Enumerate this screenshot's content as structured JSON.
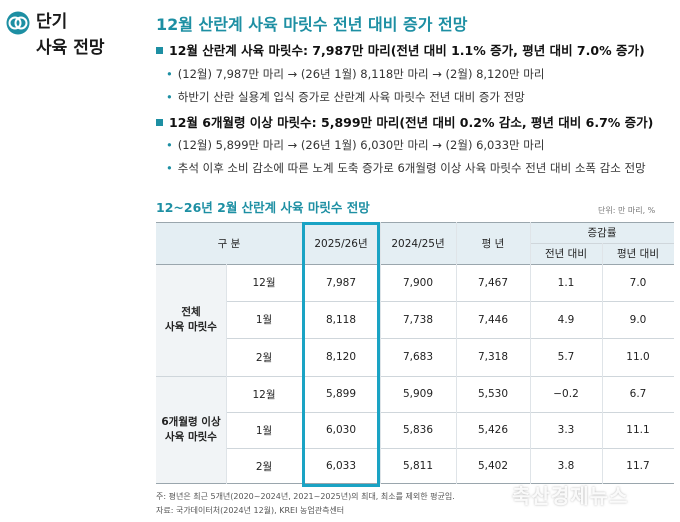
{
  "side": {
    "title_line1": "단기",
    "title_line2": "사육 전망"
  },
  "main_title": "12월 산란계 사육 마릿수 전년 대비 증가 전망",
  "sections": [
    {
      "heading": "12월 산란계 사육 마릿수: 7,987만 마리(전년 대비 1.1% 증가, 평년 대비 7.0% 증가)",
      "bullets": [
        "(12월) 7,987만 마리 → (26년 1월) 8,118만 마리 → (2월) 8,120만 마리",
        "하반기 산란 실용계 입식 증가로 산란계 사육 마릿수 전년 대비 증가 전망"
      ]
    },
    {
      "heading": "12월 6개월령 이상 마릿수: 5,899만 마리(전년 대비 0.2% 감소, 평년 대비 6.7% 증가)",
      "bullets": [
        "(12월) 5,899만 마리 → (26년 1월) 6,030만 마리 → (2월) 6,033만 마리",
        "추석 이후 소비 감소에 따른 노계 도축 증가로 6개월령 이상 사육 마릿수 전년 대비 소폭 감소 전망"
      ]
    }
  ],
  "table": {
    "title": "12~26년 2월 산란계 사육 마릿수 전망",
    "unit": "단위: 만 마리, %",
    "headers": {
      "category": "구  분",
      "col1": "2025/26년",
      "col2": "2024/25년",
      "col3": "평  년",
      "change": "증감률",
      "yoy": "전년 대비",
      "vs_avg": "평년 대비"
    },
    "groups": [
      {
        "label_line1": "전체",
        "label_line2": "사육 마릿수",
        "rows": [
          {
            "month": "12월",
            "v2526": "7,987",
            "v2425": "7,900",
            "avg": "7,467",
            "yoy": "1.1",
            "vs_avg": "7.0"
          },
          {
            "month": "1월",
            "v2526": "8,118",
            "v2425": "7,738",
            "avg": "7,446",
            "yoy": "4.9",
            "vs_avg": "9.0"
          },
          {
            "month": "2월",
            "v2526": "8,120",
            "v2425": "7,683",
            "avg": "7,318",
            "yoy": "5.7",
            "vs_avg": "11.0"
          }
        ]
      },
      {
        "label_line1": "6개월령 이상",
        "label_line2": "사육 마릿수",
        "rows": [
          {
            "month": "12월",
            "v2526": "5,899",
            "v2425": "5,909",
            "avg": "5,530",
            "yoy": "−0.2",
            "vs_avg": "6.7"
          },
          {
            "month": "1월",
            "v2526": "6,030",
            "v2425": "5,836",
            "avg": "5,426",
            "yoy": "3.3",
            "vs_avg": "11.1"
          },
          {
            "month": "2월",
            "v2526": "6,033",
            "v2425": "5,811",
            "avg": "5,402",
            "yoy": "3.8",
            "vs_avg": "11.7"
          }
        ]
      }
    ]
  },
  "footnote1": "주: 평년은 최근 5개년(2020~2024년, 2021~2025년)의 최대, 최소를 제외한 평균임.",
  "footnote2": "자료: 국가데이터처(2024년 12월), KREI 농업관측센터",
  "watermark": "축산경제뉴스",
  "colors": {
    "accent": "#1d8fa3",
    "highlight_border": "#1aa3c4",
    "header_bg": "#e4eef3",
    "group_bg": "#f1f4f6"
  }
}
